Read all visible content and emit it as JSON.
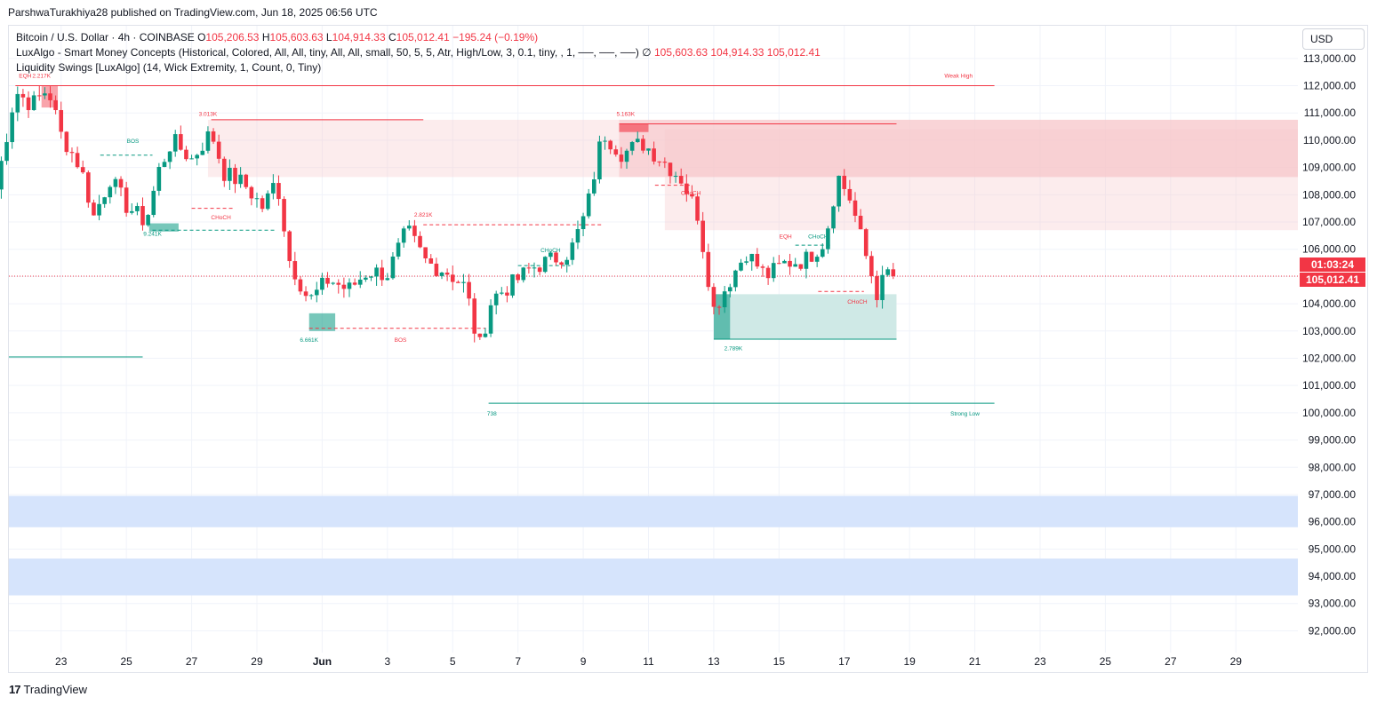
{
  "publisher": "ParshwaTurakhiya28 published on TradingView.com, Jun 18, 2025 06:56 UTC",
  "legend": {
    "symbol": "Bitcoin / U.S. Dollar · 4h · COINBASE",
    "ohlc": [
      {
        "key": "O",
        "value": "105,206.53"
      },
      {
        "key": "H",
        "value": "105,603.63"
      },
      {
        "key": "L",
        "value": "104,914.33"
      },
      {
        "key": "C",
        "value": "105,012.41"
      }
    ],
    "change": "−195.24 (−0.19%)",
    "indicator1": "LuxAlgo - Smart Money Concepts (Historical, Colored, All, All, tiny, All, All, small, 50, 5, 5, Atr, High/Low, 3, 0.1, tiny, , 1, ──, ──, ──)  ∅",
    "indicator1_values": "105,603.63   104,914.33   105,012.41",
    "indicator2": "Liquidity Swings [LuxAlgo] (14, Wick Extremity, 1, Count, 0, Tiny)"
  },
  "currency": "USD",
  "countdown": "01:03:24",
  "last_price": "105,012.41",
  "brand": "TradingView",
  "colors": {
    "up": "#089981",
    "down": "#f23645",
    "supply_zone": "#f7c8cc",
    "demand_zone": "#cfe9e6",
    "blue_zone": "#d6e4fc"
  },
  "chart_data": {
    "type": "candlestick",
    "title": "Bitcoin / U.S. Dollar · 4h · COINBASE",
    "y_ticks": [
      "113,000.00",
      "112,000.00",
      "111,000.00",
      "110,000.00",
      "109,000.00",
      "108,000.00",
      "107,000.00",
      "106,000.00",
      "105,000.00",
      "104,000.00",
      "103,000.00",
      "102,000.00",
      "101,000.00",
      "100,000.00",
      "99,000.00",
      "98,000.00",
      "97,000.00",
      "96,000.00",
      "95,000.00",
      "94,000.00",
      "93,000.00",
      "92,000.00"
    ],
    "y_tick_values": [
      113000,
      112000,
      111000,
      110000,
      109000,
      108000,
      107000,
      106000,
      105000,
      104000,
      103000,
      102000,
      101000,
      100000,
      99000,
      98000,
      97000,
      96000,
      95000,
      94000,
      93000,
      92000
    ],
    "ylim": [
      91200,
      114200
    ],
    "x_ticks": [
      {
        "label": "23",
        "day": 2
      },
      {
        "label": "25",
        "day": 4
      },
      {
        "label": "27",
        "day": 6
      },
      {
        "label": "29",
        "day": 8
      },
      {
        "label": "Jun",
        "day": 10
      },
      {
        "label": "3",
        "day": 12
      },
      {
        "label": "5",
        "day": 14
      },
      {
        "label": "7",
        "day": 16
      },
      {
        "label": "9",
        "day": 18
      },
      {
        "label": "11",
        "day": 20
      },
      {
        "label": "13",
        "day": 22
      },
      {
        "label": "15",
        "day": 24
      },
      {
        "label": "17",
        "day": 26
      },
      {
        "label": "19",
        "day": 28
      },
      {
        "label": "21",
        "day": 30
      },
      {
        "label": "23",
        "day": 32
      },
      {
        "label": "25",
        "day": 34
      },
      {
        "label": "27",
        "day": 36
      },
      {
        "label": "29",
        "day": 38
      }
    ],
    "xlim_days": [
      0.4,
      39.9
    ],
    "candle_anchors": [
      [
        0.0,
        108200
      ],
      [
        0.6,
        111800
      ],
      [
        1.1,
        111300
      ],
      [
        1.6,
        111900
      ],
      [
        2.0,
        110200
      ],
      [
        2.6,
        109000
      ],
      [
        3.0,
        107200
      ],
      [
        3.5,
        108600
      ],
      [
        4.0,
        107600
      ],
      [
        4.6,
        107000
      ],
      [
        5.0,
        108900
      ],
      [
        5.4,
        110000
      ],
      [
        6.0,
        109300
      ],
      [
        6.6,
        110300
      ],
      [
        7.0,
        108800
      ],
      [
        7.6,
        108400
      ],
      [
        8.2,
        107500
      ],
      [
        8.6,
        108600
      ],
      [
        9.0,
        105600
      ],
      [
        9.6,
        104100
      ],
      [
        10.2,
        104900
      ],
      [
        10.8,
        104500
      ],
      [
        11.4,
        105200
      ],
      [
        12.0,
        105100
      ],
      [
        12.6,
        106700
      ],
      [
        13.2,
        105500
      ],
      [
        13.8,
        105200
      ],
      [
        14.4,
        104600
      ],
      [
        14.8,
        102300
      ],
      [
        15.2,
        104200
      ],
      [
        15.8,
        104700
      ],
      [
        16.4,
        105300
      ],
      [
        17.0,
        105600
      ],
      [
        17.6,
        105900
      ],
      [
        18.1,
        107400
      ],
      [
        18.6,
        110300
      ],
      [
        19.2,
        109500
      ],
      [
        19.8,
        109900
      ],
      [
        20.4,
        109300
      ],
      [
        21.0,
        108600
      ],
      [
        21.5,
        107300
      ],
      [
        22.0,
        103800
      ],
      [
        22.6,
        105100
      ],
      [
        23.0,
        105900
      ],
      [
        23.6,
        105000
      ],
      [
        24.2,
        105500
      ],
      [
        24.8,
        105600
      ],
      [
        25.4,
        106300
      ],
      [
        25.8,
        108700
      ],
      [
        26.2,
        107800
      ],
      [
        26.6,
        106000
      ],
      [
        27.0,
        104400
      ],
      [
        27.4,
        105300
      ],
      [
        27.6,
        105012.41
      ]
    ],
    "annotations": [
      {
        "text": "EQH",
        "day": 0.9,
        "price": 112300,
        "color": "#f23645"
      },
      {
        "text": "2.217K",
        "day": 1.4,
        "price": 112300,
        "color": "#f23645"
      },
      {
        "text": "Weak High",
        "day": 29.5,
        "price": 112300,
        "color": "#f23645"
      },
      {
        "text": "3.013K",
        "day": 6.5,
        "price": 110900,
        "color": "#f23645"
      },
      {
        "text": "5.163K",
        "day": 19.3,
        "price": 110900,
        "color": "#f23645"
      },
      {
        "text": "BOS",
        "day": 4.2,
        "price": 109900,
        "color": "#089981"
      },
      {
        "text": "CHoCH",
        "day": 6.9,
        "price": 107100,
        "color": "#f23645"
      },
      {
        "text": "9.241K",
        "day": 4.8,
        "price": 106500,
        "color": "#089981"
      },
      {
        "text": "2.821K",
        "day": 13.1,
        "price": 107200,
        "color": "#f23645"
      },
      {
        "text": "CHoCH",
        "day": 17.0,
        "price": 105900,
        "color": "#089981"
      },
      {
        "text": "CHoCH",
        "day": 21.3,
        "price": 108000,
        "color": "#f23645"
      },
      {
        "text": "EQH",
        "day": 24.2,
        "price": 106400,
        "color": "#f23645"
      },
      {
        "text": "CHoCH",
        "day": 25.2,
        "price": 106400,
        "color": "#089981"
      },
      {
        "text": "CHoCH",
        "day": 26.4,
        "price": 104000,
        "color": "#f23645"
      },
      {
        "text": "6.661K",
        "day": 9.6,
        "price": 102600,
        "color": "#089981"
      },
      {
        "text": "BOS",
        "day": 12.4,
        "price": 102600,
        "color": "#f23645"
      },
      {
        "text": "2.789K",
        "day": 22.6,
        "price": 102300,
        "color": "#089981"
      },
      {
        "text": "738",
        "day": 15.2,
        "price": 99900,
        "color": "#089981"
      },
      {
        "text": "Strong Low",
        "day": 29.7,
        "price": 99900,
        "color": "#089981"
      }
    ],
    "grid": true,
    "legend_position": "top-left"
  }
}
